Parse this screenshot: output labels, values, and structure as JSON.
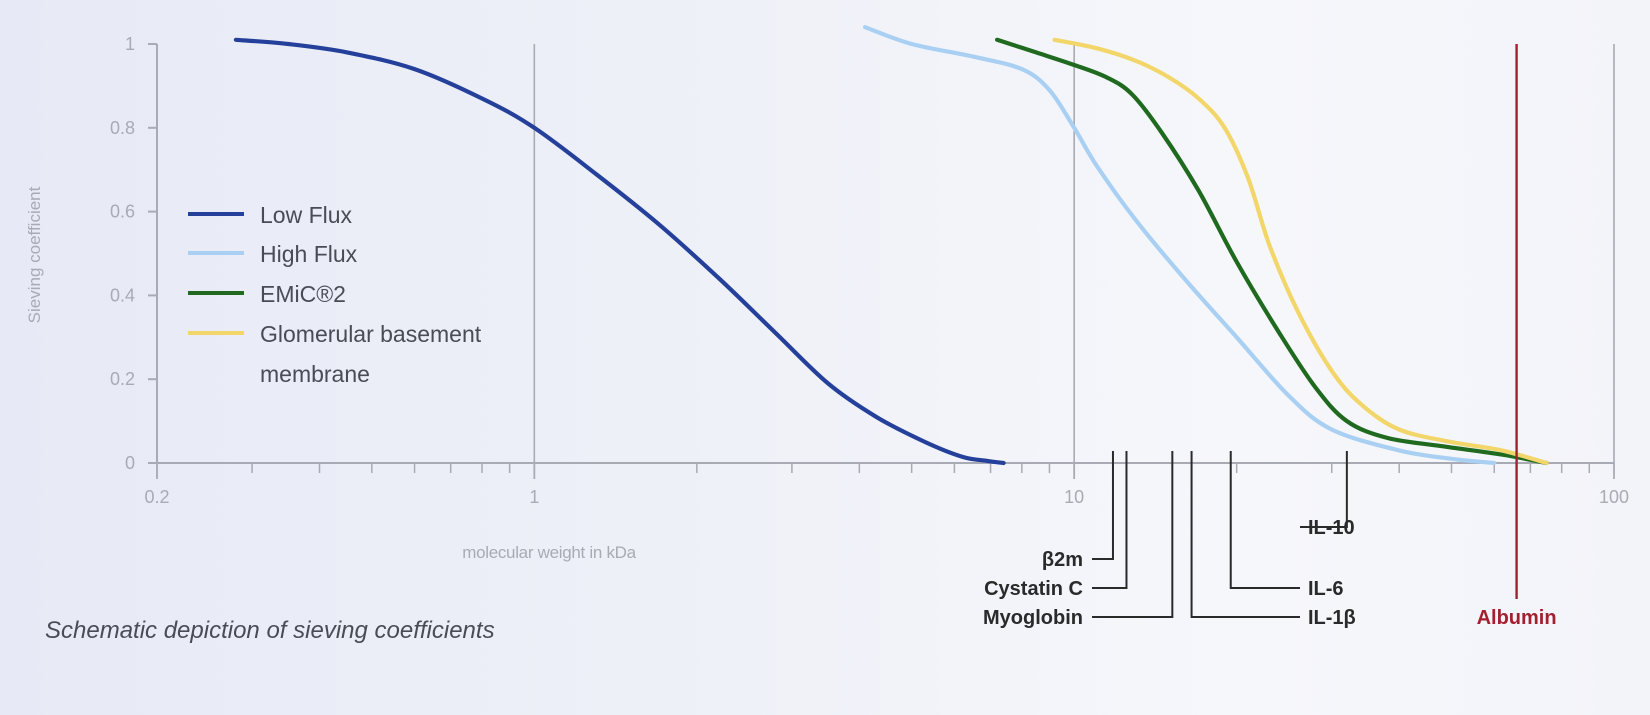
{
  "chart_data": {
    "type": "line",
    "xscale": "log",
    "xlim": [
      0.2,
      100
    ],
    "ylim": [
      0,
      1
    ],
    "xticks": [
      0.2,
      1,
      10,
      100
    ],
    "yticks": [
      0,
      0.2,
      0.4,
      0.6,
      0.8,
      1
    ],
    "xlabel": "molecular weight in kDa",
    "ylabel": "Sieving coefficient",
    "grid": "vertical lines at 1, 10, 100",
    "legend_position": "left",
    "series": [
      {
        "name": "Low Flux",
        "color": "#24409a",
        "x": [
          0.28,
          0.35,
          0.45,
          0.6,
          0.8,
          1.0,
          1.3,
          1.7,
          2.2,
          2.8,
          3.5,
          4.3,
          5.3,
          6.2,
          6.9,
          7.4
        ],
        "y": [
          1.01,
          1.0,
          0.98,
          0.94,
          0.87,
          0.8,
          0.69,
          0.57,
          0.44,
          0.31,
          0.19,
          0.11,
          0.05,
          0.015,
          0.005,
          0.0
        ]
      },
      {
        "name": "High Flux",
        "color": "#a9d0f2",
        "x": [
          4.1,
          5.0,
          6.5,
          8.0,
          9.0,
          10.0,
          11.0,
          13.0,
          16.0,
          20.0,
          25.0,
          30.0,
          40.0,
          50.0,
          60.0
        ],
        "y": [
          1.04,
          1.0,
          0.97,
          0.94,
          0.89,
          0.8,
          0.71,
          0.58,
          0.44,
          0.3,
          0.16,
          0.08,
          0.03,
          0.01,
          0.0
        ]
      },
      {
        "name": "EMiC®2",
        "color": "#1f6a1f",
        "x": [
          7.2,
          8.5,
          10.0,
          11.5,
          12.8,
          14.5,
          17.0,
          20.0,
          24.0,
          28.0,
          32.0,
          38.0,
          48.0,
          62.0,
          75.0
        ],
        "y": [
          1.01,
          0.98,
          0.95,
          0.92,
          0.88,
          0.79,
          0.65,
          0.48,
          0.31,
          0.18,
          0.1,
          0.06,
          0.04,
          0.02,
          0.0
        ]
      },
      {
        "name": "Glomerular basement membrane",
        "color": "#f2d66a",
        "x": [
          9.2,
          11.0,
          13.0,
          15.0,
          17.0,
          19.0,
          21.0,
          23.0,
          26.0,
          30.0,
          34.0,
          40.0,
          50.0,
          62.0,
          75.0
        ],
        "y": [
          1.01,
          0.99,
          0.96,
          0.92,
          0.87,
          0.8,
          0.68,
          0.52,
          0.36,
          0.22,
          0.14,
          0.08,
          0.05,
          0.03,
          0.0
        ]
      }
    ],
    "markers": [
      {
        "label": "β2m",
        "x": 11.8,
        "side": "left",
        "row": 1
      },
      {
        "label": "Cystatin C",
        "x": 12.5,
        "side": "left",
        "row": 2
      },
      {
        "label": "Myoglobin",
        "x": 15.2,
        "side": "left",
        "row": 3
      },
      {
        "label": "IL-10",
        "x": 32.0,
        "side": "right",
        "row": 0
      },
      {
        "label": "IL-6",
        "x": 19.5,
        "side": "right",
        "row": 2
      },
      {
        "label": "IL-1β",
        "x": 16.5,
        "side": "right",
        "row": 3
      }
    ],
    "reference_line": {
      "label": "Albumin",
      "x": 66,
      "color": "#a3212f"
    }
  },
  "caption": "Schematic depiction of sieving coefficients",
  "legend": {
    "items": [
      {
        "label": "Low Flux",
        "color": "#24409a"
      },
      {
        "label": "High Flux",
        "color": "#a9d0f2"
      },
      {
        "label": "EMiC®2",
        "color": "#1f6a1f"
      },
      {
        "label": "Glomerular basement",
        "color": "#f2d66a"
      }
    ],
    "last_line": "membrane"
  },
  "colors": {
    "axis": "#a8aab4",
    "grid": "#a8aab4",
    "label": "#2a2a2a"
  }
}
